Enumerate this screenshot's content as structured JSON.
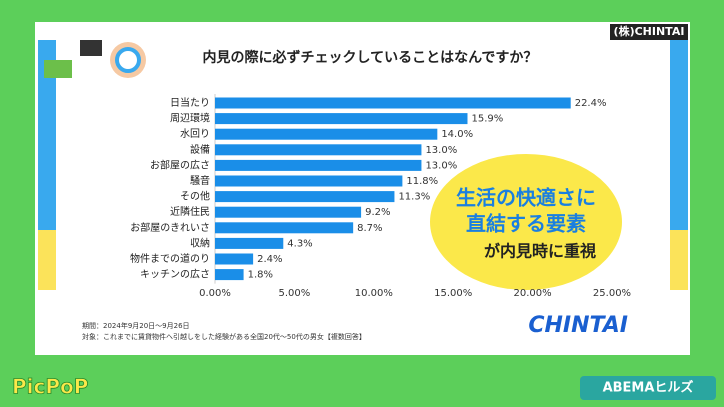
{
  "chart_data": {
    "type": "bar",
    "orientation": "horizontal",
    "title": "内見の際に必ずチェックしていることはなんですか？",
    "categories": [
      "日当たり",
      "周辺環境",
      "水回り",
      "設備",
      "お部屋の広さ",
      "騒音",
      "その他",
      "近隣住民",
      "お部屋のきれいさ",
      "収納",
      "物件までの道のり",
      "キッチンの広さ"
    ],
    "values": [
      22.4,
      15.9,
      14.0,
      13.0,
      13.0,
      11.8,
      11.3,
      9.2,
      8.7,
      4.3,
      2.4,
      1.8
    ],
    "value_labels": [
      "22.4%",
      "15.9%",
      "14.0%",
      "13.0%",
      "13.0%",
      "11.8%",
      "11.3%",
      "9.2%",
      "8.7%",
      "4.3%",
      "2.4%",
      "1.8%"
    ],
    "color": "#1a8ee8",
    "xlim": [
      0,
      25
    ],
    "xticks": [
      {
        "value": 0,
        "label": "0.00%"
      },
      {
        "value": 5,
        "label": "5.00%"
      },
      {
        "value": 10,
        "label": "10.00%"
      },
      {
        "value": 15,
        "label": "15.00%"
      },
      {
        "value": 20,
        "label": "20.00%"
      },
      {
        "value": 25,
        "label": "25.00%"
      }
    ],
    "grid": false,
    "annotation": [
      "生活の快適さに",
      "直結する要素",
      "が内見時に重視"
    ],
    "notes": [
      "期間：2024年9月20日～9月26日",
      "対象：これまでに賃貸物件へ引越しをした経験がある全国20代～50代の男女【複数回答】"
    ]
  },
  "source": "(株)CHINTAI",
  "logo": "CHINTAI",
  "brand_left": "PicPoP",
  "brand_right": "ABEMAヒルズ"
}
